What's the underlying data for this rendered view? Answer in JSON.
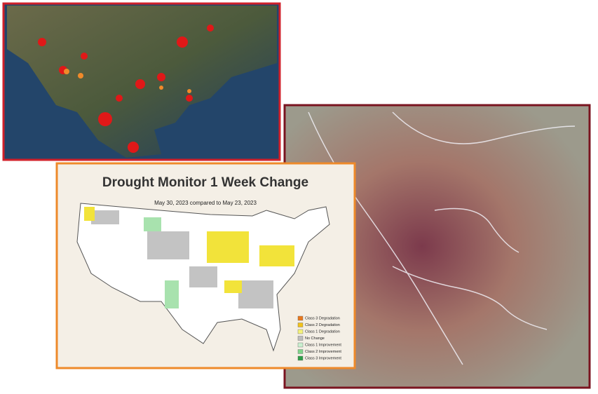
{
  "drought_map": {
    "title": "Drought Monitor 1 Week Change",
    "subtitle": "May 30, 2023 compared to May 23, 2023",
    "legend": [
      {
        "label": "Class 3 Degradation",
        "color": "#e8781e"
      },
      {
        "label": "Class 2 Degradation",
        "color": "#f2c21b"
      },
      {
        "label": "Class 1 Degradation",
        "color": "#f5f27a"
      },
      {
        "label": "No Change",
        "color": "#bdbdbd"
      },
      {
        "label": "Class 1 Improvement",
        "color": "#c9f0cf"
      },
      {
        "label": "Class 2 Improvement",
        "color": "#7fd48a"
      },
      {
        "label": "Class 3 Improvement",
        "color": "#2e9e48"
      }
    ]
  }
}
